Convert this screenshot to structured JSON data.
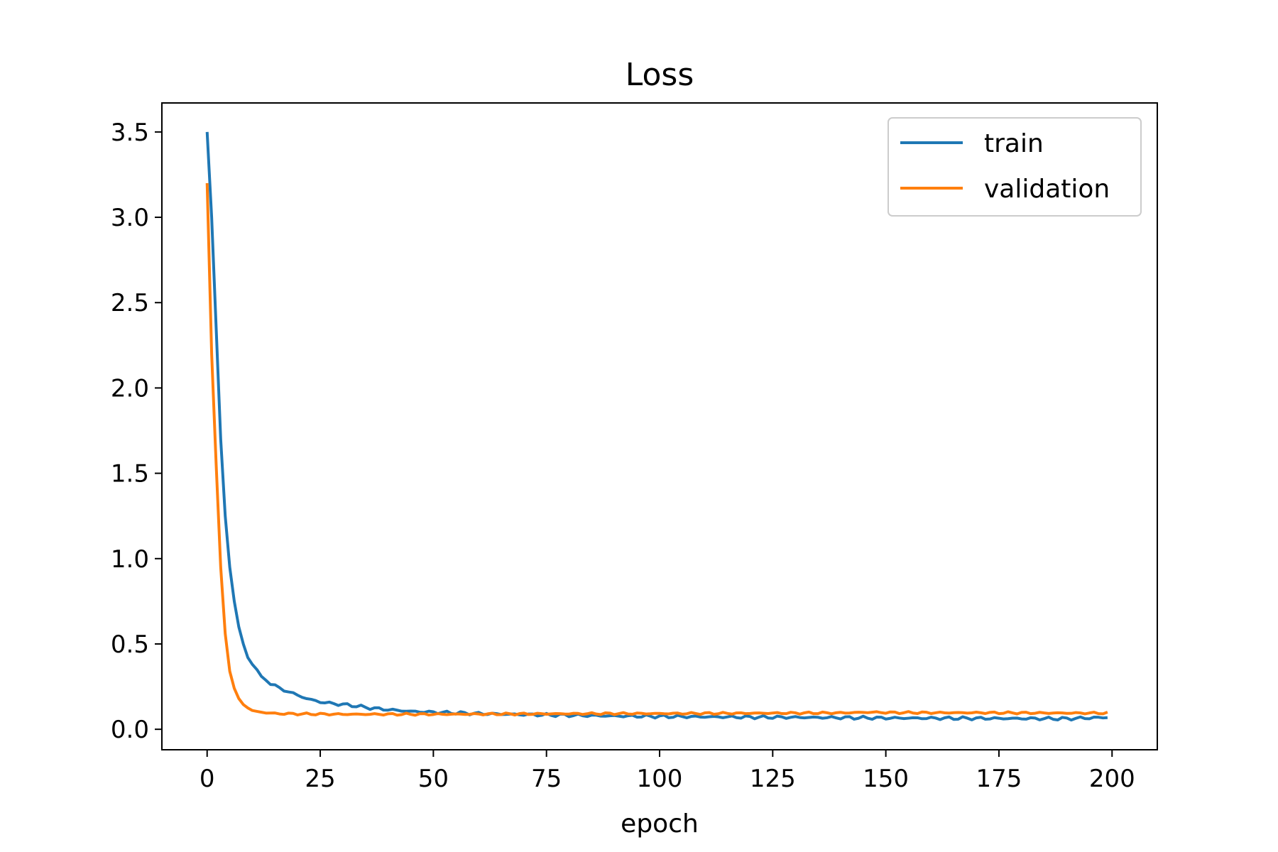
{
  "chart_data": {
    "type": "line",
    "title": "Loss",
    "xlabel": "epoch",
    "ylabel": "",
    "xlim": [
      -10,
      210
    ],
    "ylim": [
      -0.12,
      3.67
    ],
    "xticks": [
      0,
      25,
      50,
      75,
      100,
      125,
      150,
      175,
      200
    ],
    "xtick_labels": [
      "0",
      "25",
      "50",
      "75",
      "100",
      "125",
      "150",
      "175",
      "200"
    ],
    "yticks": [
      0.0,
      0.5,
      1.0,
      1.5,
      2.0,
      2.5,
      3.0,
      3.5
    ],
    "ytick_labels": [
      "0.0",
      "0.5",
      "1.0",
      "1.5",
      "2.0",
      "2.5",
      "3.0",
      "3.5"
    ],
    "grid": false,
    "legend": {
      "position": "upper-right",
      "entries": [
        "train",
        "validation"
      ]
    },
    "series": [
      {
        "name": "train",
        "color": "#1f77b4",
        "keypoints": [
          [
            0,
            3.5
          ],
          [
            1,
            3.0
          ],
          [
            2,
            2.35
          ],
          [
            3,
            1.7
          ],
          [
            4,
            1.25
          ],
          [
            5,
            0.95
          ],
          [
            6,
            0.75
          ],
          [
            7,
            0.6
          ],
          [
            8,
            0.5
          ],
          [
            9,
            0.42
          ],
          [
            10,
            0.38
          ],
          [
            11,
            0.35
          ],
          [
            12,
            0.31
          ],
          [
            14,
            0.27
          ],
          [
            16,
            0.24
          ],
          [
            18,
            0.22
          ],
          [
            20,
            0.2
          ],
          [
            22,
            0.18
          ],
          [
            25,
            0.16
          ],
          [
            28,
            0.15
          ],
          [
            32,
            0.14
          ],
          [
            36,
            0.125
          ],
          [
            40,
            0.115
          ],
          [
            45,
            0.105
          ],
          [
            50,
            0.1
          ],
          [
            60,
            0.092
          ],
          [
            70,
            0.086
          ],
          [
            80,
            0.082
          ],
          [
            90,
            0.078
          ],
          [
            100,
            0.075
          ],
          [
            110,
            0.073
          ],
          [
            120,
            0.071
          ],
          [
            130,
            0.07
          ],
          [
            140,
            0.068
          ],
          [
            150,
            0.066
          ],
          [
            160,
            0.065
          ],
          [
            170,
            0.064
          ],
          [
            180,
            0.063
          ],
          [
            190,
            0.062
          ],
          [
            199,
            0.07
          ]
        ]
      },
      {
        "name": "validation",
        "color": "#ff7f0e",
        "keypoints": [
          [
            0,
            3.2
          ],
          [
            1,
            2.2
          ],
          [
            2,
            1.55
          ],
          [
            3,
            0.95
          ],
          [
            4,
            0.56
          ],
          [
            5,
            0.34
          ],
          [
            6,
            0.24
          ],
          [
            7,
            0.18
          ],
          [
            8,
            0.145
          ],
          [
            9,
            0.125
          ],
          [
            10,
            0.11
          ],
          [
            12,
            0.1
          ],
          [
            15,
            0.092
          ],
          [
            20,
            0.09
          ],
          [
            30,
            0.088
          ],
          [
            40,
            0.088
          ],
          [
            50,
            0.088
          ],
          [
            60,
            0.089
          ],
          [
            70,
            0.09
          ],
          [
            80,
            0.091
          ],
          [
            90,
            0.092
          ],
          [
            100,
            0.092
          ],
          [
            110,
            0.093
          ],
          [
            120,
            0.094
          ],
          [
            130,
            0.095
          ],
          [
            140,
            0.096
          ],
          [
            147,
            0.1
          ],
          [
            150,
            0.098
          ],
          [
            160,
            0.097
          ],
          [
            170,
            0.097
          ],
          [
            180,
            0.096
          ],
          [
            190,
            0.095
          ],
          [
            199,
            0.095
          ]
        ]
      }
    ]
  }
}
